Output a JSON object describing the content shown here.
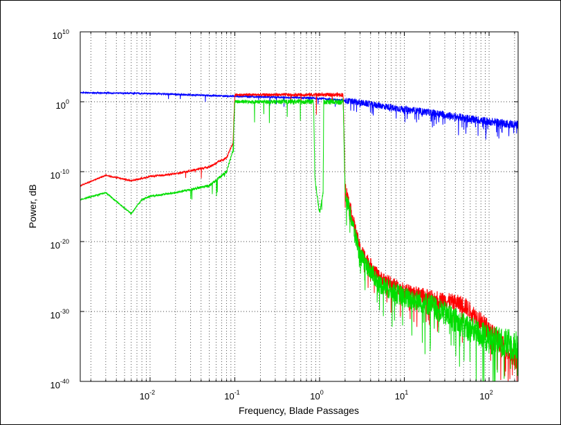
{
  "chart_data": {
    "type": "line",
    "title": "",
    "xlabel": "Frequency, Blade Passages",
    "ylabel": "Power, dB",
    "xscale": "log",
    "yscale": "log",
    "xlim": [
      0.0015,
      220
    ],
    "ylim": [
      1e-40,
      10000000000.0
    ],
    "grid": true,
    "grid_style": "dotted",
    "legend": "none",
    "x_ticks": [
      {
        "value": 0.01,
        "base": "10",
        "exp": "-2"
      },
      {
        "value": 0.1,
        "base": "10",
        "exp": "-1"
      },
      {
        "value": 1,
        "base": "10",
        "exp": "0"
      },
      {
        "value": 10,
        "base": "10",
        "exp": "1"
      },
      {
        "value": 100,
        "base": "10",
        "exp": "2"
      }
    ],
    "y_ticks": [
      {
        "value": 1e-40,
        "base": "10",
        "exp": "-40"
      },
      {
        "value": 1e-30,
        "base": "10",
        "exp": "-30"
      },
      {
        "value": 1e-20,
        "base": "10",
        "exp": "-20"
      },
      {
        "value": 1e-10,
        "base": "10",
        "exp": "-10"
      },
      {
        "value": 1,
        "base": "10",
        "exp": "0"
      },
      {
        "value": 10000000000.0,
        "base": "10",
        "exp": "10"
      }
    ],
    "series": [
      {
        "color": "#0000ff",
        "noise_decades": [
          0.6,
          1.2
        ],
        "points": [
          [
            0.0015,
            20
          ],
          [
            0.01,
            15
          ],
          [
            0.05,
            8
          ],
          [
            0.1,
            6
          ],
          [
            0.5,
            4
          ],
          [
            1,
            3
          ],
          [
            2,
            1.5
          ],
          [
            5,
            0.3
          ],
          [
            10,
            0.08
          ],
          [
            20,
            0.03
          ],
          [
            50,
            0.005
          ],
          [
            100,
            0.0015
          ],
          [
            220,
            0.0005
          ]
        ]
      },
      {
        "color": "#ff0000",
        "noise_decades": [
          0.5,
          3.0
        ],
        "points": [
          [
            0.0015,
            1e-12
          ],
          [
            0.003,
            3e-11
          ],
          [
            0.006,
            5e-12
          ],
          [
            0.01,
            2e-11
          ],
          [
            0.02,
            5e-11
          ],
          [
            0.05,
            5e-10
          ],
          [
            0.08,
            1e-08
          ],
          [
            0.095,
            1e-06
          ],
          [
            0.1,
            10
          ],
          [
            0.5,
            10
          ],
          [
            1.0,
            10
          ],
          [
            1.5,
            10
          ],
          [
            1.9,
            10
          ],
          [
            2.0,
            1e-12
          ],
          [
            3,
            1e-21
          ],
          [
            5,
            1e-25
          ],
          [
            10,
            1e-27
          ],
          [
            20,
            1e-28
          ],
          [
            50,
            1e-29
          ],
          [
            100,
            3e-33
          ],
          [
            220,
            3e-38
          ]
        ]
      },
      {
        "color": "#00dd00",
        "noise_decades": [
          0.5,
          4.5
        ],
        "points": [
          [
            0.0015,
            1e-14
          ],
          [
            0.003,
            1e-13
          ],
          [
            0.006,
            1e-16
          ],
          [
            0.008,
            1e-14
          ],
          [
            0.01,
            3e-14
          ],
          [
            0.02,
            1e-13
          ],
          [
            0.05,
            1e-12
          ],
          [
            0.08,
            1e-10
          ],
          [
            0.095,
            1e-07
          ],
          [
            0.1,
            1
          ],
          [
            0.85,
            1
          ],
          [
            0.88,
            1e-11
          ],
          [
            1.0,
            1e-16
          ],
          [
            1.1,
            1e-13
          ],
          [
            1.12,
            1
          ],
          [
            1.9,
            1
          ],
          [
            2.0,
            1e-13
          ],
          [
            3,
            1e-22
          ],
          [
            5,
            1e-26
          ],
          [
            10,
            1e-28
          ],
          [
            20,
            1e-29
          ],
          [
            50,
            1e-32
          ],
          [
            100,
            1e-34
          ],
          [
            220,
            1e-35
          ]
        ]
      }
    ]
  }
}
